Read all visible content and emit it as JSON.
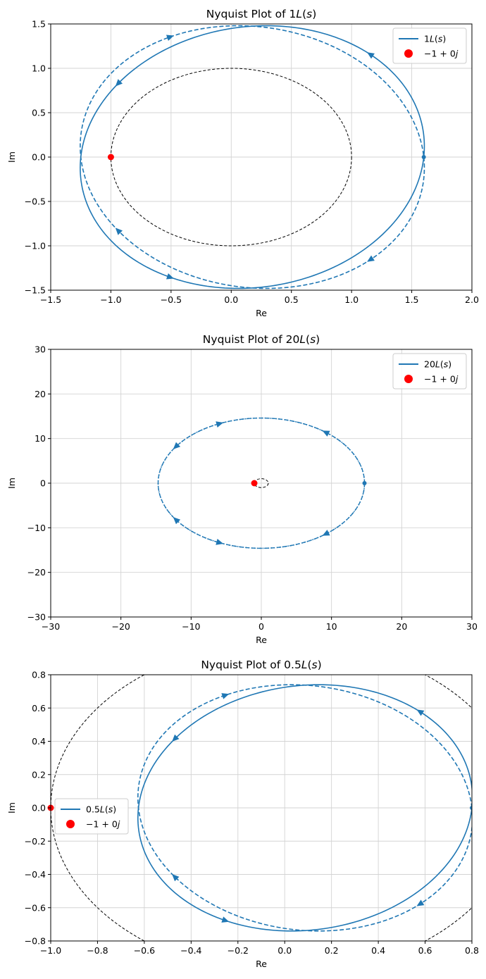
{
  "colors": {
    "series": "#1f77b4",
    "point": "#ff0000",
    "unit_circle": "#000000"
  },
  "chart_data": [
    {
      "type": "line",
      "title": "Nyquist Plot of 1L(s)",
      "xlabel": "Re",
      "ylabel": "Im",
      "xlim": [
        -1.5,
        2.0
      ],
      "ylim": [
        -1.5,
        1.5
      ],
      "xticks": [
        -1.5,
        -1.0,
        -0.5,
        0.0,
        0.5,
        1.0,
        1.5,
        2.0
      ],
      "yticks": [
        -1.5,
        -1.0,
        -0.5,
        0.0,
        0.5,
        1.0,
        1.5
      ],
      "xtick_labels": [
        "−1.5",
        "−1.0",
        "−0.5",
        "0.0",
        "0.5",
        "1.0",
        "1.5",
        "2.0"
      ],
      "ytick_labels": [
        "−1.5",
        "−1.0",
        "−0.5",
        "0.0",
        "0.5",
        "1.0",
        "1.5"
      ],
      "grid": true,
      "legend": {
        "position": "top-right",
        "series_label": "1L(s)",
        "point_label": "−1 + 0j"
      },
      "gain": 1,
      "curve": {
        "ellipse_center": [
          0.175,
          0.0
        ],
        "semi_axis_re": 1.425,
        "semi_axis_im": 1.48,
        "skew": 0.42,
        "start_point": [
          1.6,
          0.0
        ]
      },
      "critical_point": [
        -1,
        0
      ],
      "unit_circle": true
    },
    {
      "type": "line",
      "title": "Nyquist Plot of 20L(s)",
      "xlabel": "Re",
      "ylabel": "Im",
      "xlim": [
        -30,
        30
      ],
      "ylim": [
        -30,
        30
      ],
      "xticks": [
        -30,
        -20,
        -10,
        0,
        10,
        20,
        30
      ],
      "yticks": [
        -30,
        -20,
        -10,
        0,
        10,
        20,
        30
      ],
      "xtick_labels": [
        "−30",
        "−20",
        "−10",
        "0",
        "10",
        "20",
        "30"
      ],
      "ytick_labels": [
        "−30",
        "−20",
        "−10",
        "0",
        "10",
        "20",
        "30"
      ],
      "grid": true,
      "legend": {
        "position": "top-right",
        "series_label": "20L(s)",
        "point_label": "−1 + 0j"
      },
      "gain": 20,
      "curve": {
        "ellipse_center": [
          0.0,
          0.0
        ],
        "semi_axis_re": 14.7,
        "semi_axis_im": 14.6,
        "skew": 0.0,
        "start_point": [
          14.7,
          0.0
        ]
      },
      "critical_point": [
        -1,
        0
      ],
      "unit_circle": true
    },
    {
      "type": "line",
      "title": "Nyquist Plot of 0.5L(s)",
      "xlabel": "Re",
      "ylabel": "Im",
      "xlim": [
        -1.0,
        0.8
      ],
      "ylim": [
        -0.8,
        0.8
      ],
      "xticks": [
        -1.0,
        -0.8,
        -0.6,
        -0.4,
        -0.2,
        0.0,
        0.2,
        0.4,
        0.6,
        0.8
      ],
      "yticks": [
        -0.8,
        -0.6,
        -0.4,
        -0.2,
        0.0,
        0.2,
        0.4,
        0.6,
        0.8
      ],
      "xtick_labels": [
        "−1.0",
        "−0.8",
        "−0.6",
        "−0.4",
        "−0.2",
        "0.0",
        "0.2",
        "0.4",
        "0.6",
        "0.8"
      ],
      "ytick_labels": [
        "−0.8",
        "−0.6",
        "−0.4",
        "−0.2",
        "0.0",
        "0.2",
        "0.4",
        "0.6",
        "0.8"
      ],
      "grid": true,
      "legend": {
        "position": "center-left",
        "series_label": "0.5L(s)",
        "point_label": "−1 + 0j"
      },
      "gain": 0.5,
      "curve": {
        "ellipse_center": [
          0.0875,
          0.0
        ],
        "semi_axis_re": 0.7125,
        "semi_axis_im": 0.74,
        "skew": 0.21,
        "start_point": [
          0.8,
          0.0
        ]
      },
      "critical_point": [
        -1,
        0
      ],
      "unit_circle": true
    }
  ]
}
